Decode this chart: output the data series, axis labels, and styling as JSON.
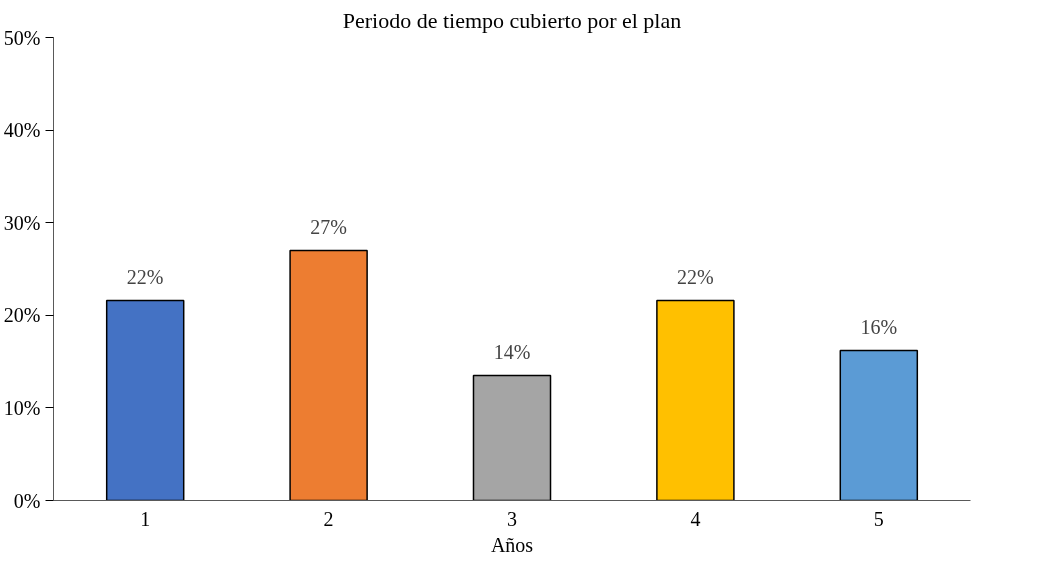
{
  "chart_data": {
    "type": "bar",
    "title": "Periodo de tiempo cubierto por el plan",
    "xlabel": "Años",
    "categories": [
      "1",
      "2",
      "3",
      "4",
      "5"
    ],
    "values": [
      21.6,
      27.0,
      13.5,
      21.6,
      16.2
    ],
    "colors": [
      "#4472c4",
      "#ed7d31",
      "#a5a5a5",
      "#ffc000",
      "#5b9bd5"
    ],
    "value_labels": [
      "22%",
      "27%",
      "14%",
      "22%",
      "16%"
    ],
    "ylim": [
      0,
      50
    ],
    "yticks": [
      {
        "value": 0,
        "label": "0%"
      },
      {
        "value": 10,
        "label": "10%"
      },
      {
        "value": 20,
        "label": "20%"
      },
      {
        "value": 30,
        "label": "30%"
      },
      {
        "value": 40,
        "label": "40%"
      },
      {
        "value": 50,
        "label": "50%"
      }
    ],
    "grid": false
  }
}
